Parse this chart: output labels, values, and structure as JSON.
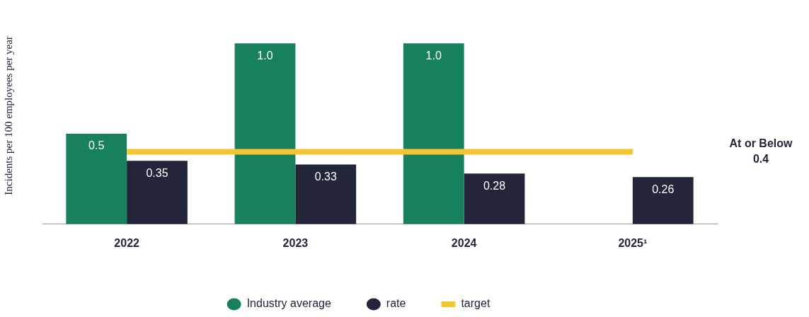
{
  "chart_data": {
    "type": "bar",
    "ylabel": "Incidents per 100 employees per year",
    "categories": [
      "2022",
      "2023",
      "2024",
      "2025¹"
    ],
    "series": [
      {
        "name": "Industry average",
        "color": "#17805f",
        "values": [
          0.5,
          1.0,
          1.0,
          null
        ],
        "value_labels": [
          "0.5",
          "1.0",
          "1.0",
          null
        ]
      },
      {
        "name": "rate",
        "color": "#23253a",
        "values": [
          0.35,
          0.33,
          0.28,
          0.26
        ],
        "value_labels": [
          "0.35",
          "0.33",
          "0.28",
          "0.26"
        ]
      },
      {
        "name": "target",
        "type": "line",
        "color": "#f3c530",
        "values": [
          0.4,
          0.4,
          0.4,
          0.4
        ]
      }
    ],
    "annotations": [
      "At or Below 0.4"
    ],
    "legend": "bottom",
    "grid": false,
    "marker": "none"
  }
}
